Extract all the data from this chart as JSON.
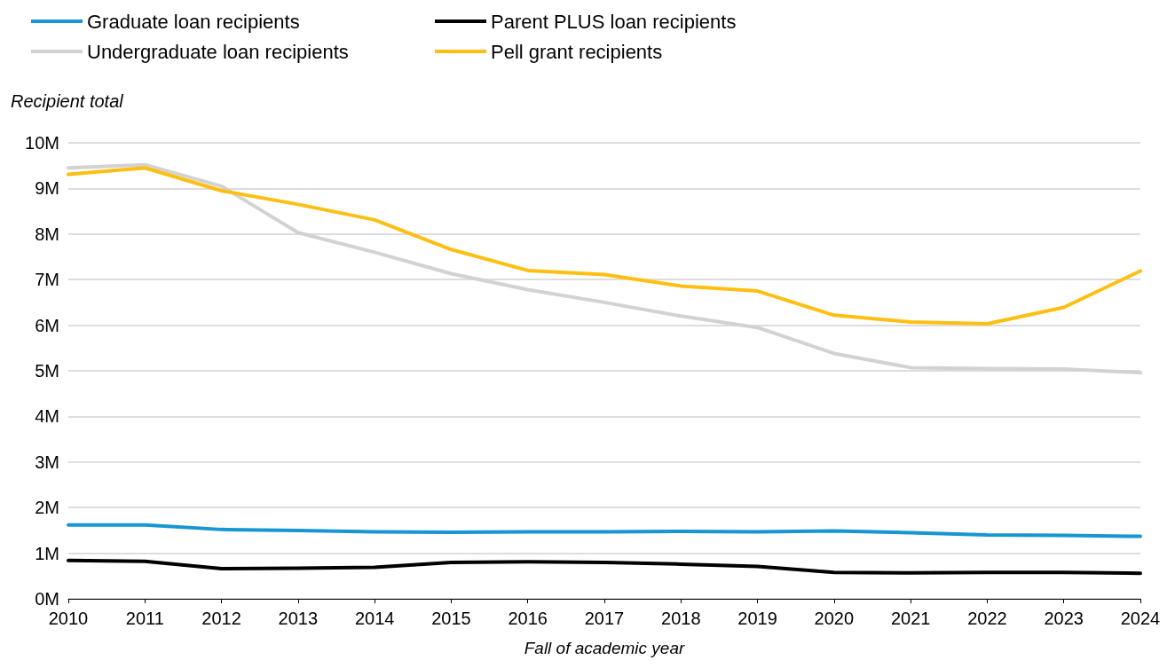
{
  "chart_data": {
    "type": "line",
    "ylabel": "Recipient total",
    "xlabel": "Fall of academic year",
    "x": [
      2010,
      2011,
      2012,
      2013,
      2014,
      2015,
      2016,
      2017,
      2018,
      2019,
      2020,
      2021,
      2022,
      2023,
      2024
    ],
    "xlim": [
      2010,
      2024
    ],
    "xticks": [
      2010,
      2011,
      2012,
      2013,
      2014,
      2015,
      2016,
      2017,
      2018,
      2019,
      2020,
      2021,
      2022,
      2023,
      2024
    ],
    "ylim": [
      0,
      10
    ],
    "yticks": [
      {
        "value": 0,
        "label": "0M"
      },
      {
        "value": 1,
        "label": "1M"
      },
      {
        "value": 2,
        "label": "2M"
      },
      {
        "value": 3,
        "label": "3M"
      },
      {
        "value": 4,
        "label": "4M"
      },
      {
        "value": 5,
        "label": "5M"
      },
      {
        "value": 6,
        "label": "6M"
      },
      {
        "value": 7,
        "label": "7M"
      },
      {
        "value": 8,
        "label": "8M"
      },
      {
        "value": 9,
        "label": "9M"
      },
      {
        "value": 10,
        "label": "10M"
      }
    ],
    "grid": "y",
    "legend": "top left",
    "marker": "none",
    "line_style": "solid",
    "series": [
      {
        "name": "Graduate loan recipients",
        "color": "#1696d2",
        "values": [
          1.62,
          1.62,
          1.52,
          1.5,
          1.47,
          1.46,
          1.47,
          1.47,
          1.48,
          1.47,
          1.49,
          1.45,
          1.4,
          1.39,
          1.37
        ]
      },
      {
        "name": "Parent PLUS loan recipients",
        "color": "#000000",
        "values": [
          0.84,
          0.82,
          0.66,
          0.67,
          0.69,
          0.8,
          0.81,
          0.8,
          0.76,
          0.71,
          0.58,
          0.57,
          0.58,
          0.58,
          0.56
        ]
      },
      {
        "name": "Undergraduate loan recipients",
        "color": "#d2d2d2",
        "values": [
          9.45,
          9.52,
          9.05,
          8.03,
          7.6,
          7.13,
          6.78,
          6.5,
          6.2,
          5.95,
          5.38,
          5.07,
          5.05,
          5.04,
          4.96
        ]
      },
      {
        "name": "Pell grant recipients",
        "color": "#fdbf11",
        "values": [
          9.31,
          9.45,
          8.95,
          8.65,
          8.31,
          7.66,
          7.2,
          7.11,
          6.86,
          6.75,
          6.22,
          6.07,
          6.03,
          6.39,
          7.19
        ]
      }
    ]
  }
}
